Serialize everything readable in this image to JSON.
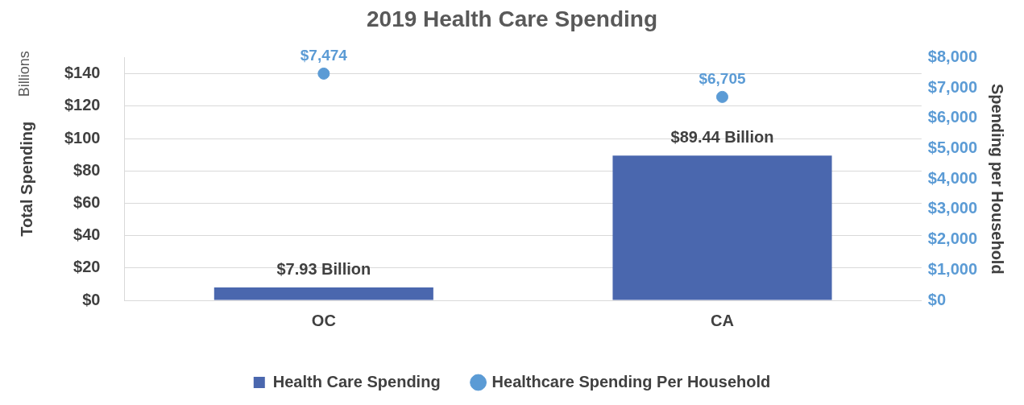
{
  "chart_data": {
    "type": "bar",
    "title": "2019 Health Care Spending",
    "ylabel": "Total Spending",
    "y2label": "Spending per Household",
    "annotations": [
      "Billions"
    ],
    "categories": [
      "OC",
      "CA"
    ],
    "series": [
      {
        "name": "Health Care Spending",
        "color": "#4a67ae",
        "values": [
          7.93,
          89.44
        ],
        "value_labels": [
          "$7.93 Billion",
          "$89.44 Billion"
        ]
      },
      {
        "name": "Healthcare Spending Per Household",
        "type": "scatter",
        "axis": "y2",
        "color": "#5b9bd5",
        "marker": "circle",
        "values": [
          7474,
          6705
        ],
        "value_labels": [
          "$7,474",
          "$6,705"
        ]
      }
    ],
    "ylim": [
      0,
      150
    ],
    "yticks": [
      {
        "value": 0,
        "label": "$0"
      },
      {
        "value": 20,
        "label": "$20"
      },
      {
        "value": 40,
        "label": "$40"
      },
      {
        "value": 60,
        "label": "$60"
      },
      {
        "value": 80,
        "label": "$80"
      },
      {
        "value": 100,
        "label": "$100"
      },
      {
        "value": 120,
        "label": "$120"
      },
      {
        "value": 140,
        "label": "$140"
      }
    ],
    "y2lim": [
      0,
      8000
    ],
    "y2ticks": [
      {
        "value": 0,
        "label": "$0"
      },
      {
        "value": 1000,
        "label": "$1,000"
      },
      {
        "value": 2000,
        "label": "$2,000"
      },
      {
        "value": 3000,
        "label": "$3,000"
      },
      {
        "value": 4000,
        "label": "$4,000"
      },
      {
        "value": 5000,
        "label": "$5,000"
      },
      {
        "value": 6000,
        "label": "$6,000"
      },
      {
        "value": 7000,
        "label": "$7,000"
      },
      {
        "value": 8000,
        "label": "$8,000"
      }
    ],
    "grid": "y",
    "legend": "bottom"
  }
}
